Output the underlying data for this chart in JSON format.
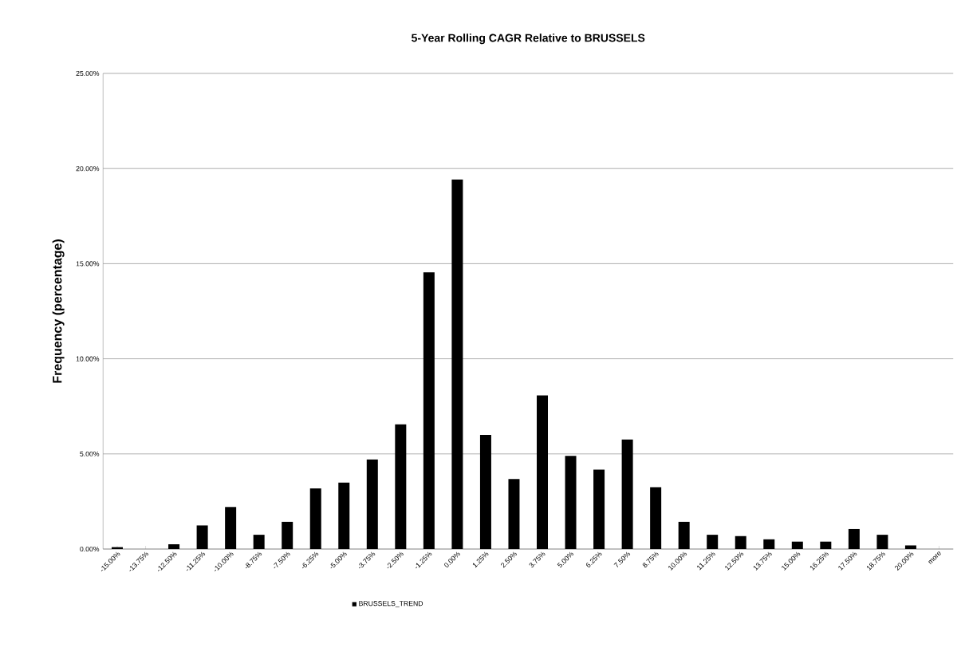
{
  "chart_data": {
    "type": "bar",
    "title": "5-Year Rolling CAGR Relative to BRUSSELS",
    "ylabel": "Frequency (percentage)",
    "categories": [
      "-15.00%",
      "-13.75%",
      "-12.50%",
      "-11.25%",
      "-10.00%",
      "-8.75%",
      "-7.50%",
      "-6.25%",
      "-5.00%",
      "-3.75%",
      "-2.50%",
      "-1.25%",
      "0.00%",
      "1.25%",
      "2.50%",
      "3.75%",
      "5.00%",
      "6.25%",
      "7.50%",
      "8.75%",
      "10.00%",
      "11.25%",
      "12.50%",
      "13.75%",
      "15.00%",
      "16.25%",
      "17.50%",
      "18.75%",
      "20.00%",
      "more"
    ],
    "series": [
      {
        "name": "BRUSSELS_TREND",
        "color": "#000000",
        "values": [
          0.1,
          0,
          0.25,
          1.24,
          2.21,
          0.75,
          1.43,
          3.19,
          3.49,
          4.71,
          6.55,
          14.54,
          19.42,
          6.0,
          3.68,
          8.07,
          4.9,
          4.17,
          5.76,
          3.25,
          1.43,
          0.75,
          0.68,
          0.51,
          0.39,
          0.39,
          1.05,
          0.75,
          0.19,
          0
        ]
      }
    ],
    "ylim": [
      0,
      25
    ],
    "yticks": [
      {
        "value": 0,
        "label": "0.00%"
      },
      {
        "value": 5,
        "label": "5.00%"
      },
      {
        "value": 10,
        "label": "10.00%"
      },
      {
        "value": 15,
        "label": "15.00%"
      },
      {
        "value": 20,
        "label": "20.00%"
      },
      {
        "value": 25,
        "label": "25.00%"
      }
    ],
    "grid": "y",
    "legend": "bottom"
  }
}
